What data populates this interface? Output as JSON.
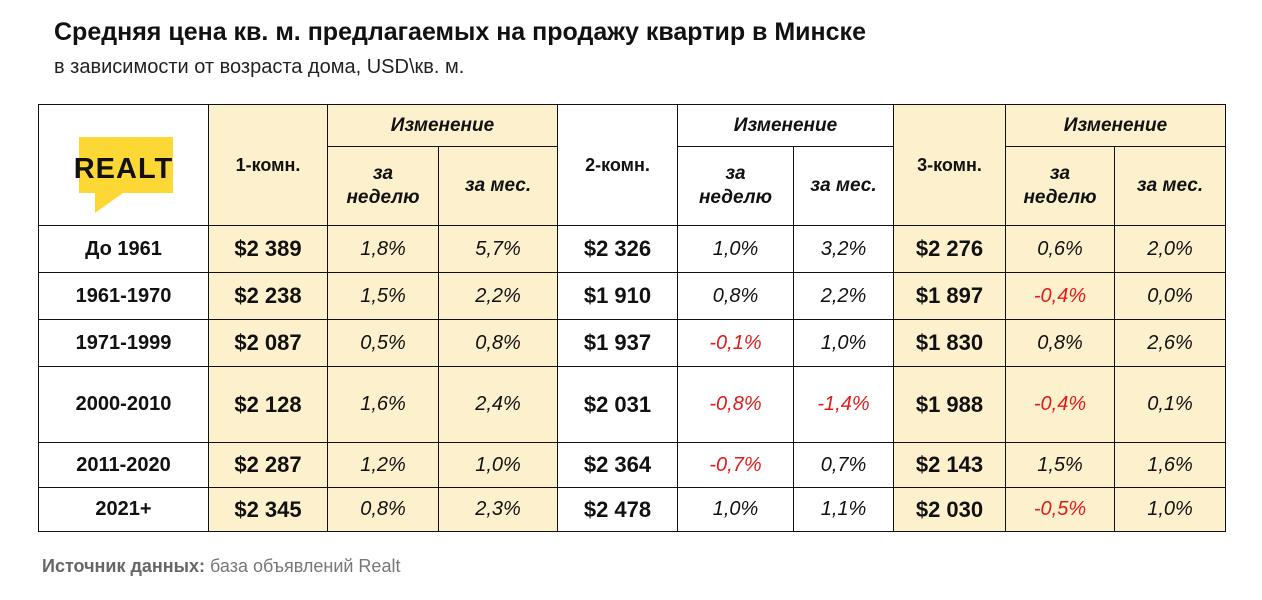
{
  "title": "Средняя цена кв. м. предлагаемых на продажу квартир в Минске",
  "subtitle": "в зависимости от возраста дома, USD\\кв. м.",
  "logo_text": "REALT",
  "header": {
    "room1": "1-комн.",
    "room2": "2-комн.",
    "room3": "3-комн.",
    "change": "Изменение",
    "week_line1": "за",
    "week_line2": "неделю",
    "month": "за мес."
  },
  "source": {
    "label": "Источник данных:",
    "text": " база объявлений Realt"
  },
  "colors": {
    "highlight": "#fdf0cc",
    "negative": "#e01b1b",
    "logo": "#fdd835"
  },
  "chart_data": {
    "type": "table",
    "columns": [
      "1-комн.",
      "за неделю",
      "за мес.",
      "2-комн.",
      "за неделю",
      "за мес.",
      "3-комн.",
      "за неделю",
      "за мес."
    ],
    "rows": [
      {
        "label": "До 1961",
        "cells": [
          "$2 389",
          "1,8%",
          "5,7%",
          "$2 326",
          "1,0%",
          "3,2%",
          "$2 276",
          "0,6%",
          "2,0%"
        ]
      },
      {
        "label": "1961-1970",
        "cells": [
          "$2 238",
          "1,5%",
          "2,2%",
          "$1 910",
          "0,8%",
          "2,2%",
          "$1 897",
          "-0,4%",
          "0,0%"
        ]
      },
      {
        "label": "1971-1999",
        "cells": [
          "$2 087",
          "0,5%",
          "0,8%",
          "$1 937",
          "-0,1%",
          "1,0%",
          "$1 830",
          "0,8%",
          "2,6%"
        ]
      },
      {
        "label": "2000-2010",
        "cells": [
          "$2 128",
          "1,6%",
          "2,4%",
          "$2 031",
          "-0,8%",
          "-1,4%",
          "$1 988",
          "-0,4%",
          "0,1%"
        ]
      },
      {
        "label": "2011-2020",
        "cells": [
          "$2 287",
          "1,2%",
          "1,0%",
          "$2 364",
          "-0,7%",
          "0,7%",
          "$2 143",
          "1,5%",
          "1,6%"
        ]
      },
      {
        "label": "2021+",
        "cells": [
          "$2 345",
          "0,8%",
          "2,3%",
          "$2 478",
          "1,0%",
          "1,1%",
          "$2 030",
          "-0,5%",
          "1,0%"
        ]
      }
    ]
  }
}
